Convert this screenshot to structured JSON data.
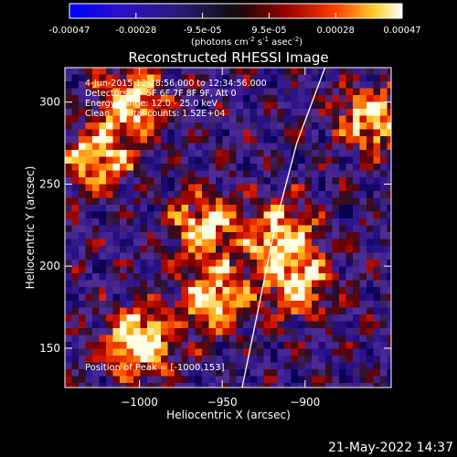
{
  "chart_data": {
    "type": "heatmap",
    "title": "Reconstructed RHESSI Image",
    "xlabel": "Heliocentric X (arcsec)",
    "ylabel": "Heliocentric Y (arcsec)",
    "xlim": [
      -1045,
      -848
    ],
    "ylim": [
      126,
      321
    ],
    "xticks": [
      -1000,
      -950,
      -900
    ],
    "yticks": [
      150,
      200,
      250,
      300
    ],
    "colorbar": {
      "ticks": [
        "-0.00047",
        "-0.00028",
        "-9.5e-05",
        "9.5e-05",
        "0.00028",
        "0.00047"
      ],
      "unit_text": "(photons cm",
      "unit_sup1": "-2",
      "unit_mid": " s",
      "unit_sup2": "-1",
      "unit_mid2": " asec",
      "unit_sup3": "-2",
      "unit_end": ")"
    },
    "annotations": {
      "time_range": "4-Jun-2015 12:28:56.000 to 12:34:56.000",
      "detectors": "Detectors: 3F 5F 6F 7F 8F 9F, Att 0",
      "energy_range": "Energy Range: 12.0 - 25.0 keV",
      "clean_label": "Clean",
      "total_counts": "Total counts: 1.52E+04",
      "peak_position": "Position of Peak = [-1000,153]"
    },
    "limb_curve": [
      [
        -938,
        126
      ],
      [
        -928,
        175
      ],
      [
        -918,
        225
      ],
      [
        -905,
        275
      ],
      [
        -888,
        321
      ]
    ],
    "emission_sources": [
      {
        "x": -955,
        "y": 180,
        "intensity": "high"
      },
      {
        "x": -905,
        "y": 190,
        "intensity": "high"
      },
      {
        "x": -915,
        "y": 220,
        "intensity": "high"
      },
      {
        "x": -1025,
        "y": 265,
        "intensity": "high"
      },
      {
        "x": -1005,
        "y": 300,
        "intensity": "high"
      },
      {
        "x": -1000,
        "y": 153,
        "intensity": "peak"
      },
      {
        "x": -960,
        "y": 225,
        "intensity": "high"
      },
      {
        "x": -860,
        "y": 290,
        "intensity": "high"
      }
    ]
  },
  "footer": {
    "timestamp": "21-May-2022 14:37"
  },
  "colors": {
    "background": "#000000",
    "foreground": "#ffffff"
  }
}
